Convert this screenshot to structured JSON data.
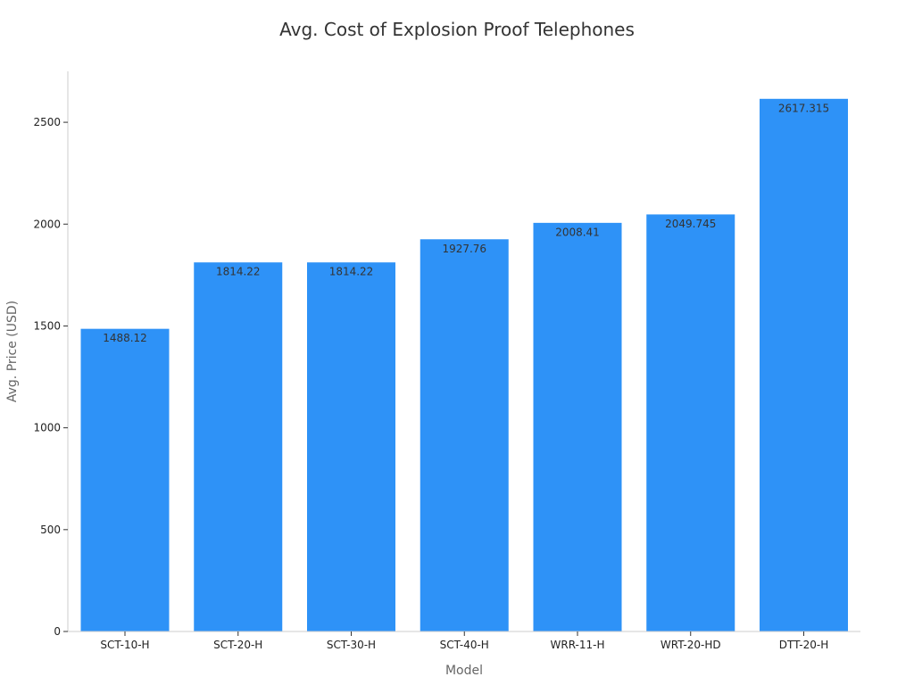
{
  "chart_data": {
    "type": "bar",
    "title": "Avg. Cost of Explosion Proof Telephones",
    "xlabel": "Model",
    "ylabel": "Avg. Price (USD)",
    "categories": [
      "SCT-10-H",
      "SCT-20-H",
      "SCT-30-H",
      "SCT-40-H",
      "WRR-11-H",
      "WRT-20-HD",
      "DTT-20-H"
    ],
    "values": [
      1488.12,
      1814.22,
      1814.22,
      1927.76,
      2008.41,
      2049.745,
      2617.315
    ],
    "data_labels": [
      "1488.12",
      "1814.22",
      "1814.22",
      "1927.76",
      "2008.41",
      "2049.745",
      "2617.315"
    ],
    "yticks": [
      0,
      500,
      1000,
      1500,
      2000,
      2500
    ],
    "ylim": [
      0,
      2750
    ],
    "grid": false,
    "legend": "none",
    "bar_color": "#2E92F7",
    "bar_edge_color": "#ffffff"
  }
}
